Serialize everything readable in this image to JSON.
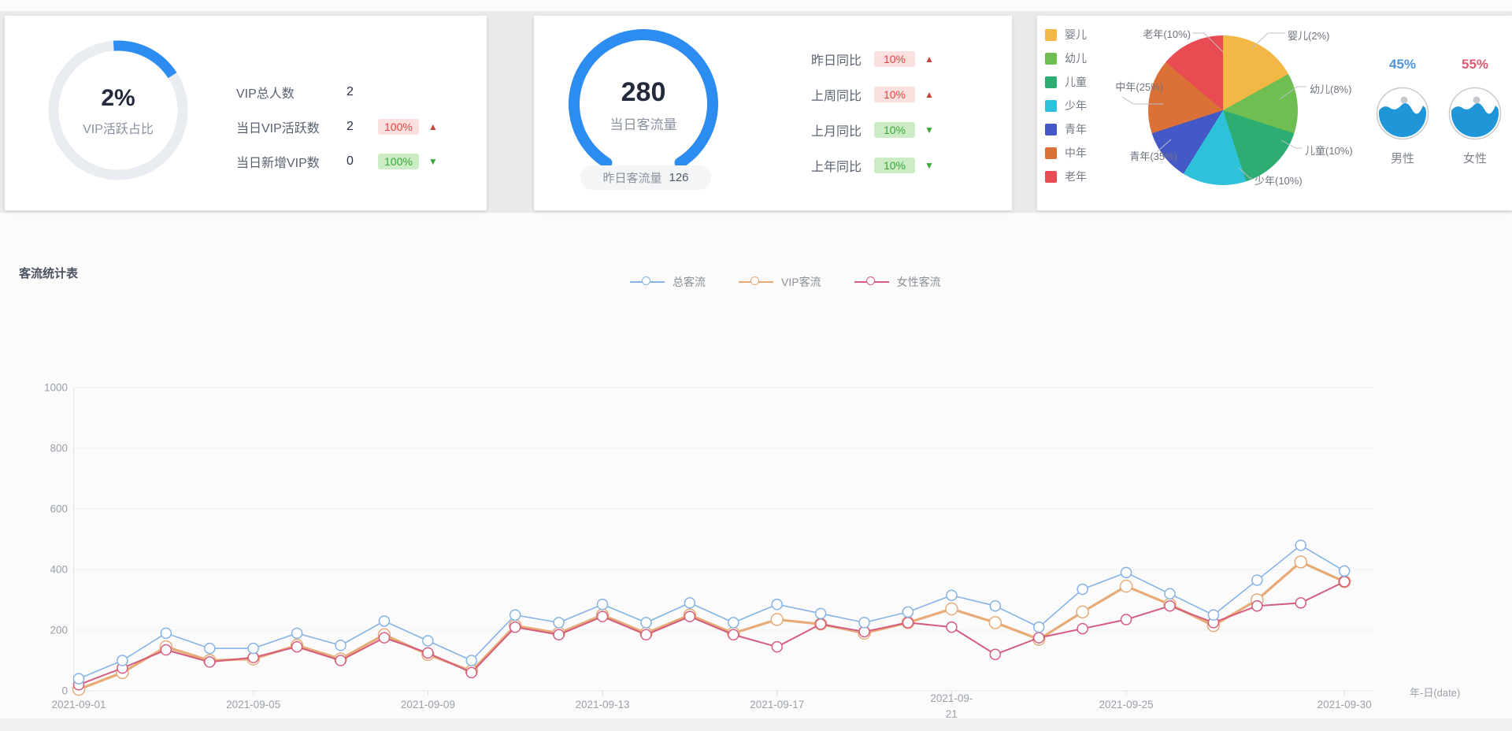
{
  "vip_card": {
    "percent": "2%",
    "caption": "VIP活跃占比",
    "rows": [
      {
        "label": "VIP总人数",
        "value": "2",
        "badge": "",
        "tone": "",
        "direction": ""
      },
      {
        "label": "当日VIP活跃数",
        "value": "2",
        "badge": "100%",
        "tone": "red",
        "direction": "up"
      },
      {
        "label": "当日新增VIP数",
        "value": "0",
        "badge": "100%",
        "tone": "green",
        "direction": "down"
      }
    ],
    "accent": "#2d8cf0"
  },
  "traffic_card": {
    "value": "280",
    "caption": "当日客流量",
    "pill_label": "昨日客流量",
    "pill_value": "126",
    "rows": [
      {
        "label": "昨日同比",
        "badge": "10%",
        "tone": "red",
        "direction": "up"
      },
      {
        "label": "上周同比",
        "badge": "10%",
        "tone": "red",
        "direction": "up"
      },
      {
        "label": "上月同比",
        "badge": "10%",
        "tone": "green",
        "direction": "down"
      },
      {
        "label": "上年同比",
        "badge": "10%",
        "tone": "green",
        "direction": "down"
      }
    ]
  },
  "age_card": {
    "legend": [
      {
        "label": "婴儿",
        "color": "#f2b744"
      },
      {
        "label": "幼儿",
        "color": "#6ebe52"
      },
      {
        "label": "儿童",
        "color": "#2ead73"
      },
      {
        "label": "少年",
        "color": "#2fc0da"
      },
      {
        "label": "青年",
        "color": "#4458c8"
      },
      {
        "label": "中年",
        "color": "#dc7138"
      },
      {
        "label": "老年",
        "color": "#e84b52"
      }
    ],
    "callouts": [
      "老年(10%)",
      "婴儿(2%)",
      "幼儿(8%)",
      "儿童(10%)",
      "少年(10%)",
      "中年(25%)",
      "青年(35%)"
    ],
    "male_percent": "45%",
    "male_label": "男性",
    "male_color": "#4f93d8",
    "female_percent": "55%",
    "female_label": "女性",
    "female_color": "#e25770",
    "liquid_color": "#1f96d8"
  },
  "flow_section": {
    "title": "客流统计表"
  },
  "chart_data": [
    {
      "type": "gauge",
      "label": "VIP活跃占比",
      "value": 2,
      "unit": "%",
      "display": "2%",
      "color": "#2d8cf0"
    },
    {
      "type": "gauge",
      "label": "当日客流量",
      "value": 280,
      "note_label": "昨日客流量",
      "note_value": 126,
      "color": "#2d8cf0"
    },
    {
      "type": "pie",
      "slices": [
        {
          "label": "婴儿",
          "percent": 2,
          "display_deg": 61,
          "color": "#f2b744"
        },
        {
          "label": "幼儿",
          "percent": 8,
          "display_deg": 47,
          "color": "#6ebe52"
        },
        {
          "label": "儿童",
          "percent": 10,
          "display_deg": 54,
          "color": "#2ead73"
        },
        {
          "label": "少年",
          "percent": 10,
          "display_deg": 50,
          "color": "#2fc0da"
        },
        {
          "label": "青年",
          "percent": 35,
          "display_deg": 40,
          "color": "#4458c8"
        },
        {
          "label": "中年",
          "percent": 25,
          "display_deg": 58,
          "color": "#dc7138"
        },
        {
          "label": "老年",
          "percent": 10,
          "display_deg": 50,
          "color": "#e84b52"
        }
      ]
    },
    {
      "type": "liquid",
      "label": "男性",
      "percent": 45
    },
    {
      "type": "liquid",
      "label": "女性",
      "percent": 55
    },
    {
      "type": "line",
      "title": "客流统计表",
      "xlabel": "年-日(date)",
      "ylim": [
        0,
        1000
      ],
      "y_ticks": [
        0,
        200,
        400,
        600,
        800,
        1000
      ],
      "x_ticks": [
        "2021-09-01",
        "2021-09-05",
        "2021-09-09",
        "2021-09-13",
        "2021-09-17",
        "2021-09-21",
        "2021-09-25",
        "2021-09-30"
      ],
      "x": [
        "2021-09-01",
        "2021-09-02",
        "2021-09-03",
        "2021-09-04",
        "2021-09-05",
        "2021-09-06",
        "2021-09-07",
        "2021-09-08",
        "2021-09-09",
        "2021-09-10",
        "2021-09-11",
        "2021-09-12",
        "2021-09-13",
        "2021-09-14",
        "2021-09-15",
        "2021-09-16",
        "2021-09-17",
        "2021-09-18",
        "2021-09-19",
        "2021-09-20",
        "2021-09-21",
        "2021-09-22",
        "2021-09-23",
        "2021-09-24",
        "2021-09-25",
        "2021-09-26",
        "2021-09-27",
        "2021-09-28",
        "2021-09-29",
        "2021-09-30"
      ],
      "series": [
        {
          "name": "总客流",
          "color": "#85b3e4",
          "line_width": 1.6,
          "marker_r": 6.5,
          "values": [
            40,
            100,
            190,
            140,
            140,
            190,
            150,
            230,
            165,
            100,
            250,
            225,
            285,
            225,
            290,
            225,
            285,
            255,
            225,
            260,
            315,
            280,
            210,
            335,
            390,
            320,
            250,
            365,
            480,
            395
          ]
        },
        {
          "name": "VIP客流",
          "color": "#e6ab76",
          "line_width": 3.2,
          "marker_r": 7.5,
          "values": [
            5,
            60,
            145,
            100,
            105,
            150,
            105,
            185,
            120,
            65,
            215,
            190,
            250,
            190,
            250,
            190,
            235,
            220,
            190,
            225,
            270,
            225,
            170,
            260,
            345,
            285,
            215,
            300,
            425,
            360
          ]
        },
        {
          "name": "女性客流",
          "color": "#d45c7d",
          "line_width": 2.0,
          "marker_r": 6.5,
          "values": [
            20,
            75,
            135,
            95,
            110,
            145,
            100,
            175,
            125,
            60,
            210,
            185,
            245,
            185,
            245,
            185,
            145,
            220,
            195,
            225,
            210,
            120,
            175,
            205,
            235,
            280,
            225,
            280,
            290,
            360
          ]
        }
      ]
    }
  ]
}
